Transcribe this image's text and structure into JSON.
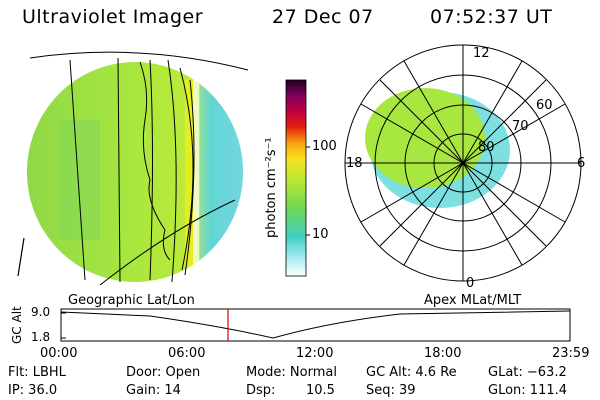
{
  "header": {
    "instrument": "Ultraviolet Imager",
    "date": "27 Dec 07",
    "time": "07:52:37 UT"
  },
  "colorbar": {
    "unit_label": "photon cm⁻²s⁻¹",
    "ticks": [
      "100",
      "10"
    ]
  },
  "polar": {
    "mlt_labels": {
      "top": "12",
      "left": "18",
      "right": "6",
      "bottom": "0"
    },
    "lat_labels": [
      "60",
      "70",
      "80"
    ]
  },
  "projection": {
    "left_label": "Geographic Lat/Lon",
    "right_label": "Apex MLat/MLT"
  },
  "altitude_plot": {
    "ylabel": "GC Alt",
    "yticks": [
      "9.0",
      "1.8"
    ],
    "xticks": [
      "00:00",
      "06:00",
      "12:00",
      "18:00",
      "23:59"
    ],
    "current_time_marker_hours": 7.88
  },
  "status": {
    "flt": "Flt: LBHL",
    "ip": "IP: 36.0",
    "door": "Door: Open",
    "gain": "Gain: 14",
    "mode": "Mode: Normal",
    "dsp_label": "Dsp:",
    "dsp_value": "10.5",
    "gcalt": "GC Alt: 4.6 Re",
    "seq": "Seq: 39",
    "glat": "GLat: −63.2",
    "glon": "GLon: 111.4"
  },
  "colors": {
    "image_green": "#9be044",
    "image_cyan": "#54e0c8",
    "marker_red": "#d40000"
  }
}
